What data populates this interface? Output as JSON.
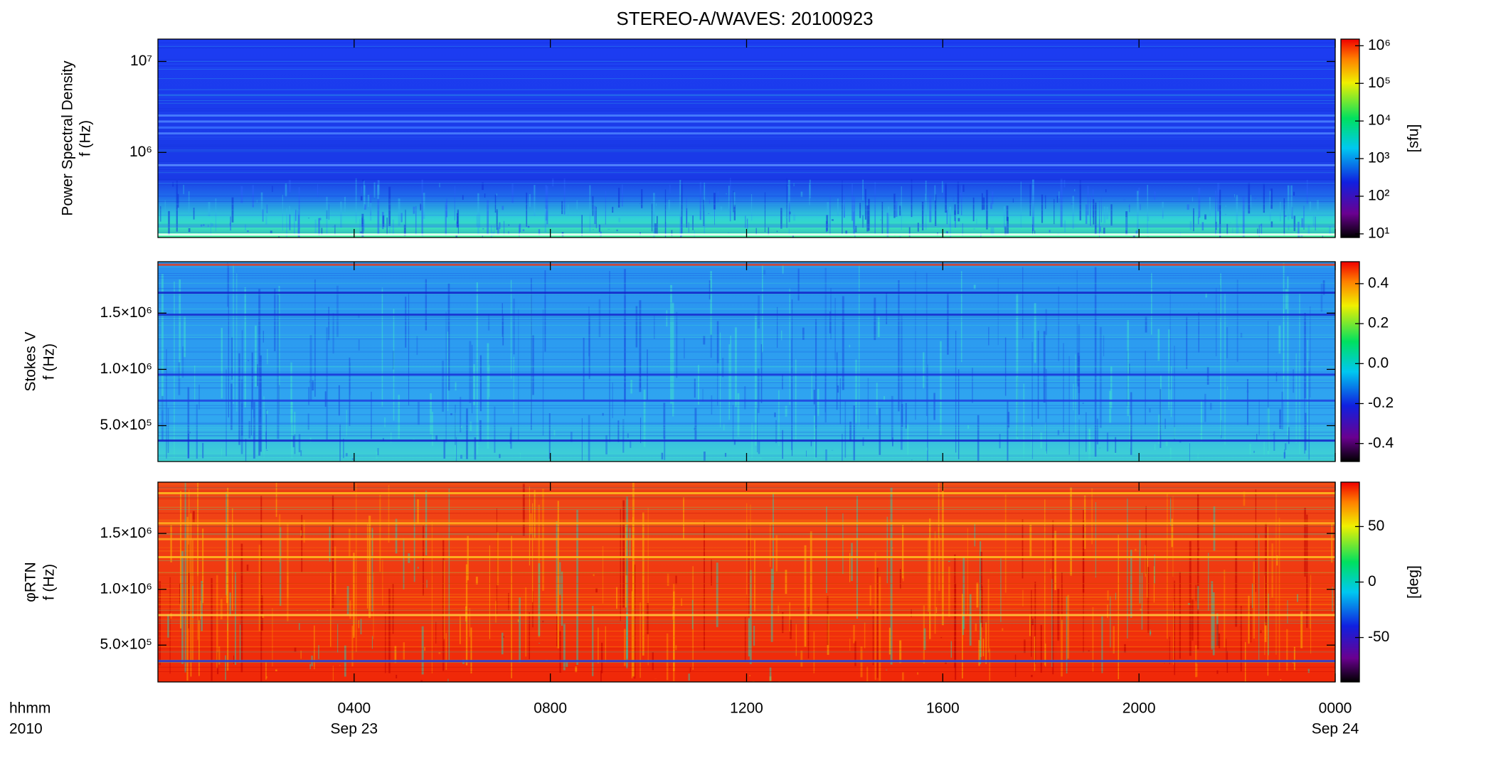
{
  "title": "STEREO-A/WAVES: 20100923",
  "x_axis": {
    "xlim": [
      0,
      24
    ],
    "xticks": [
      {
        "value": 4,
        "label": "0400"
      },
      {
        "value": 8,
        "label": "0800"
      },
      {
        "value": 12,
        "label": "1200"
      },
      {
        "value": 16,
        "label": "1600"
      },
      {
        "value": 20,
        "label": "2000"
      },
      {
        "value": 24,
        "label": "0000"
      }
    ],
    "xtick_dates": [
      "Sep 23",
      null,
      null,
      null,
      null,
      "Sep 24"
    ],
    "xlabel": "hhmm",
    "year_label": "2010"
  },
  "chart_data": [
    {
      "type": "spectrogram",
      "ylabel": [
        "Power Spectral Density",
        "f (Hz)"
      ],
      "log": true,
      "ylim": [
        116000,
        17600000
      ],
      "yticks": [
        {
          "value": 1000000,
          "label": "10⁶"
        },
        {
          "value": 10000000,
          "label": "10⁷"
        }
      ],
      "colorbar": {
        "log": true,
        "lim": [
          8,
          1500000
        ],
        "label": "[sfu]",
        "ticks": [
          {
            "value": 10,
            "label": "10¹"
          },
          {
            "value": 100,
            "label": "10²"
          },
          {
            "value": 1000,
            "label": "10³"
          },
          {
            "value": 10000,
            "label": "10⁴"
          },
          {
            "value": 100000,
            "label": "10⁵"
          },
          {
            "value": 1000000,
            "label": "10⁶"
          }
        ]
      }
    },
    {
      "type": "spectrogram",
      "ylabel": [
        "Stokes V",
        "f (Hz)"
      ],
      "log": false,
      "ylim": [
        181000,
        1957000
      ],
      "yticks": [
        {
          "value": 500000,
          "label": "5.0×10⁵"
        },
        {
          "value": 1000000,
          "label": "1.0×10⁶"
        },
        {
          "value": 1500000,
          "label": "1.5×10⁶"
        }
      ],
      "colorbar": {
        "log": false,
        "lim": [
          -0.49,
          0.51
        ],
        "ticks": [
          -0.4,
          -0.2,
          {
            "value": 0,
            "label": "0.0"
          },
          0.2,
          0.4
        ]
      }
    },
    {
      "type": "spectrogram",
      "ylabel": [
        "φRTN",
        "f (Hz)"
      ],
      "log": false,
      "ylim": [
        170000,
        1960000
      ],
      "yticks": [
        {
          "value": 500000,
          "label": "5.0×10⁵"
        },
        {
          "value": 1000000,
          "label": "1.0×10⁶"
        },
        {
          "value": 1500000,
          "label": "1.5×10⁶"
        }
      ],
      "colorbar": {
        "log": false,
        "lim": [
          -90,
          90
        ],
        "label": "[deg]",
        "ticks": [
          -50,
          0,
          50
        ]
      }
    }
  ]
}
